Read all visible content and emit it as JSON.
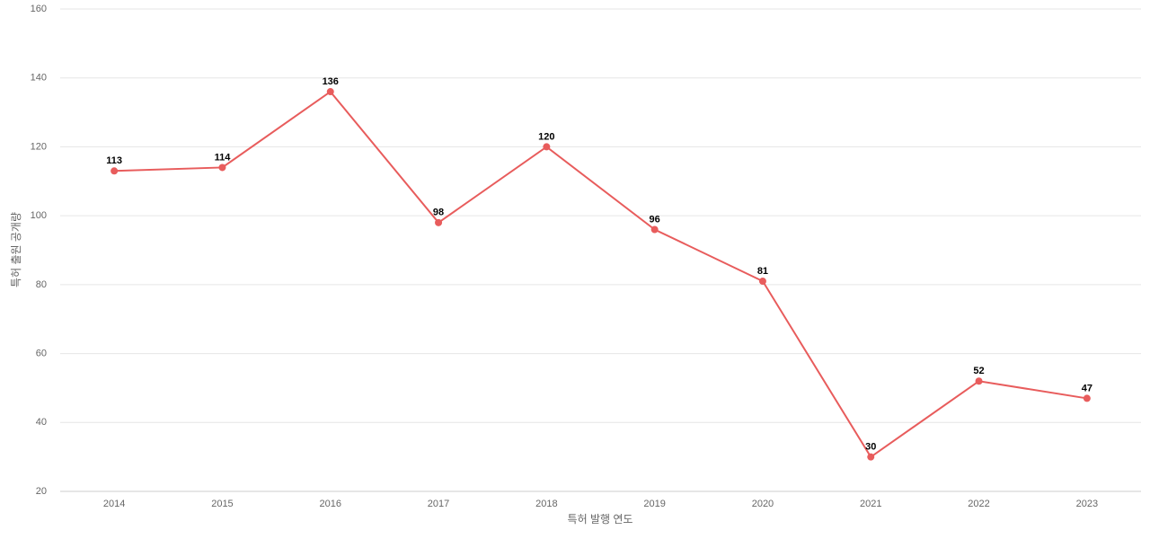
{
  "chart_data": {
    "type": "line",
    "x_label": "특허 발행 연도",
    "y_label": "특허 출원 공개량",
    "categories": [
      "2014",
      "2015",
      "2016",
      "2017",
      "2018",
      "2019",
      "2020",
      "2021",
      "2022",
      "2023"
    ],
    "values": [
      113,
      114,
      136,
      98,
      120,
      96,
      81,
      30,
      52,
      47
    ],
    "color": "#e85c5c",
    "ylim": [
      20,
      160
    ],
    "yticks": [
      20,
      40,
      60,
      80,
      100,
      120,
      140,
      160
    ],
    "grid": true
  }
}
